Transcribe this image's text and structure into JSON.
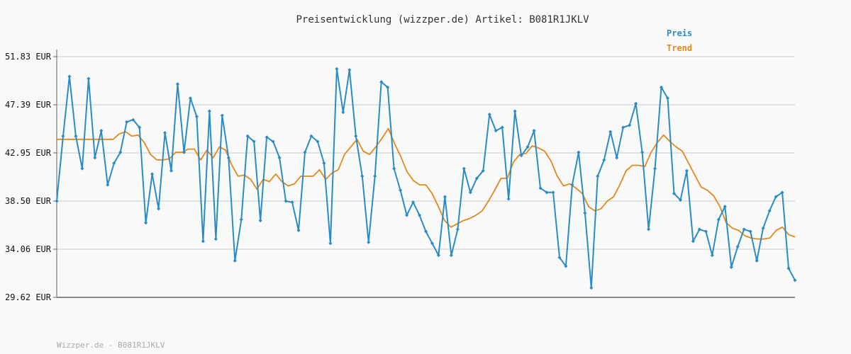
{
  "chart_data": {
    "type": "line",
    "title": "Preisentwicklung (wizzper.de) Artikel: B081R1JKLV",
    "ylim": [
      29.62,
      51.83
    ],
    "y_ticks": [
      "51.83 EUR",
      "47.39 EUR",
      "42.95 EUR",
      "38.50 EUR",
      "34.06 EUR",
      "29.62 EUR"
    ],
    "y_tick_values": [
      51.83,
      47.39,
      42.95,
      38.5,
      34.06,
      29.62
    ],
    "grid": true,
    "legend_position": "top-right",
    "series": [
      {
        "name": "Preis",
        "color": "#2b8cc4",
        "values": [
          38.5,
          44.5,
          50.0,
          44.5,
          41.5,
          49.8,
          42.5,
          45.0,
          40.0,
          42.0,
          43.0,
          45.8,
          46.0,
          45.3,
          36.5,
          41.0,
          37.8,
          44.8,
          41.3,
          49.3,
          43.0,
          48.0,
          46.3,
          34.8,
          46.8,
          35.0,
          46.4,
          42.5,
          33.0,
          36.8,
          44.5,
          44.0,
          36.7,
          44.4,
          44.0,
          42.5,
          38.5,
          38.4,
          35.8,
          43.0,
          44.5,
          44.0,
          42.0,
          34.6,
          50.7,
          46.7,
          50.6,
          44.5,
          40.8,
          34.7,
          40.8,
          49.5,
          49.0,
          41.5,
          39.5,
          37.2,
          38.4,
          37.2,
          35.7,
          34.6,
          33.5,
          38.9,
          33.5,
          35.9,
          41.5,
          39.3,
          40.6,
          41.3,
          46.5,
          45.0,
          45.3,
          38.7,
          46.8,
          42.7,
          43.5,
          45.0,
          39.7,
          39.3,
          39.3,
          33.3,
          32.5,
          40.0,
          43.0,
          37.4,
          30.5,
          40.8,
          42.3,
          44.9,
          42.5,
          45.3,
          45.5,
          47.5,
          43.0,
          35.9,
          41.5,
          49.0,
          48.0,
          39.2,
          38.6,
          41.3,
          34.8,
          35.9,
          35.7,
          33.5,
          36.8,
          38.0,
          32.4,
          34.3,
          35.9,
          35.7,
          33.0,
          36.0,
          37.6,
          38.9,
          39.3,
          32.3,
          31.2
        ]
      },
      {
        "name": "Trend",
        "color": "#e08a1e",
        "values": [
          44.2,
          44.2,
          44.2,
          44.2,
          44.2,
          44.2,
          44.2,
          44.2,
          44.2,
          44.2,
          44.7,
          44.9,
          44.5,
          44.6,
          43.9,
          42.8,
          42.3,
          42.3,
          42.4,
          43.0,
          43.0,
          43.3,
          43.3,
          42.3,
          43.2,
          42.5,
          43.5,
          43.2,
          41.8,
          40.8,
          40.9,
          40.5,
          39.6,
          40.5,
          40.3,
          41.0,
          40.3,
          39.9,
          40.1,
          40.8,
          40.8,
          40.8,
          41.4,
          40.5,
          41.1,
          41.4,
          42.8,
          43.5,
          44.2,
          43.1,
          42.8,
          43.5,
          44.3,
          45.2,
          43.8,
          42.6,
          41.2,
          40.4,
          40.0,
          40.0,
          39.2,
          38.0,
          36.7,
          36.1,
          36.4,
          36.7,
          36.9,
          37.2,
          37.6,
          38.5,
          39.5,
          40.6,
          40.6,
          42.1,
          42.8,
          42.9,
          43.6,
          43.4,
          43.1,
          42.2,
          40.8,
          39.9,
          40.1,
          39.7,
          39.2,
          38.0,
          37.6,
          37.8,
          38.5,
          38.9,
          40.0,
          41.3,
          41.8,
          41.8,
          41.7,
          43.0,
          43.9,
          44.6,
          44.0,
          43.5,
          43.1,
          42.0,
          40.9,
          39.8,
          39.5,
          39.0,
          38.0,
          36.5,
          36.0,
          35.8,
          35.3,
          35.1,
          35.0,
          35.0,
          35.1,
          35.8,
          36.1,
          35.4,
          35.2
        ]
      }
    ]
  },
  "footer": "Wizzper.de - B081R1JKLV"
}
